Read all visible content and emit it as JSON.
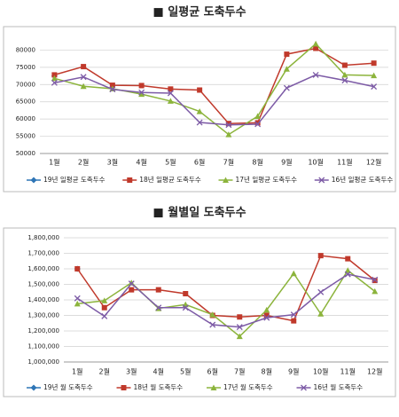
{
  "chart_data": [
    {
      "type": "line",
      "title": "■ 일평균 도축두수",
      "categories": [
        "1월",
        "2월",
        "3월",
        "4월",
        "5월",
        "6월",
        "7월",
        "8월",
        "9월",
        "10월",
        "11월",
        "12월"
      ],
      "ylim": [
        50000,
        85000
      ],
      "yticks": [
        50000,
        55000,
        60000,
        65000,
        70000,
        75000,
        80000
      ],
      "grid": true,
      "series": [
        {
          "name": "19년 일평균 도축두수",
          "color": "#2e75b6",
          "marker": "diamond",
          "values": [
            72500,
            null,
            null,
            null,
            null,
            null,
            null,
            null,
            null,
            null,
            null,
            null
          ]
        },
        {
          "name": "18년 일평균 도축두수",
          "color": "#c0392b",
          "marker": "square",
          "values": [
            72800,
            75200,
            69800,
            69700,
            68700,
            68400,
            58700,
            58900,
            78800,
            80500,
            75600,
            76200
          ]
        },
        {
          "name": "17년 일평균 도축두수",
          "color": "#8cb43c",
          "marker": "triangle",
          "values": [
            71800,
            69500,
            68800,
            67200,
            65200,
            62200,
            55500,
            60800,
            74500,
            81800,
            72800,
            72600
          ]
        },
        {
          "name": "16년 일평균 도축두수",
          "color": "#7d5ba6",
          "marker": "x",
          "values": [
            70500,
            72200,
            68600,
            67700,
            67500,
            59000,
            58300,
            58500,
            69000,
            72800,
            71200,
            69400
          ]
        }
      ]
    },
    {
      "type": "line",
      "title": "■ 월별일 도축두수",
      "categories": [
        "1월",
        "2월",
        "3월",
        "4월",
        "5월",
        "6월",
        "7월",
        "8월",
        "9월",
        "10월",
        "11월",
        "12월"
      ],
      "ylim": [
        1000000,
        1800000
      ],
      "yticks": [
        {
          "value": 1000000,
          "label": "1,000,000"
        },
        {
          "value": 1100000,
          "label": "1,100,000"
        },
        {
          "value": 1200000,
          "label": "1,200,000"
        },
        {
          "value": 1300000,
          "label": "1,300,000"
        },
        {
          "value": 1400000,
          "label": "1,400,000"
        },
        {
          "value": 1500000,
          "label": "1,500,000"
        },
        {
          "value": 1600000,
          "label": "1,600,000"
        },
        {
          "value": 1700000,
          "label": "1,700,000"
        },
        {
          "value": 1800000,
          "label": "1,800,000"
        }
      ],
      "grid": true,
      "series": [
        {
          "name": "19년 월 도축두수",
          "color": "#2e75b6",
          "marker": "diamond",
          "values": [
            1600000,
            null,
            null,
            null,
            null,
            null,
            null,
            null,
            null,
            null,
            null,
            null
          ]
        },
        {
          "name": "18년 월 도축두수",
          "color": "#c0392b",
          "marker": "square",
          "values": [
            1600000,
            1350000,
            1465000,
            1465000,
            1440000,
            1300000,
            1290000,
            1300000,
            1265000,
            1685000,
            1665000,
            1525000
          ]
        },
        {
          "name": "17년 월 도축두수",
          "color": "#8cb43c",
          "marker": "triangle",
          "values": [
            1375000,
            1395000,
            1510000,
            1345000,
            1370000,
            1305000,
            1165000,
            1335000,
            1570000,
            1310000,
            1590000,
            1455000
          ]
        },
        {
          "name": "16년 월 도축두수",
          "color": "#7d5ba6",
          "marker": "x",
          "values": [
            1410000,
            1295000,
            1505000,
            1350000,
            1350000,
            1240000,
            1225000,
            1285000,
            1305000,
            1450000,
            1565000,
            1530000
          ]
        }
      ]
    }
  ]
}
